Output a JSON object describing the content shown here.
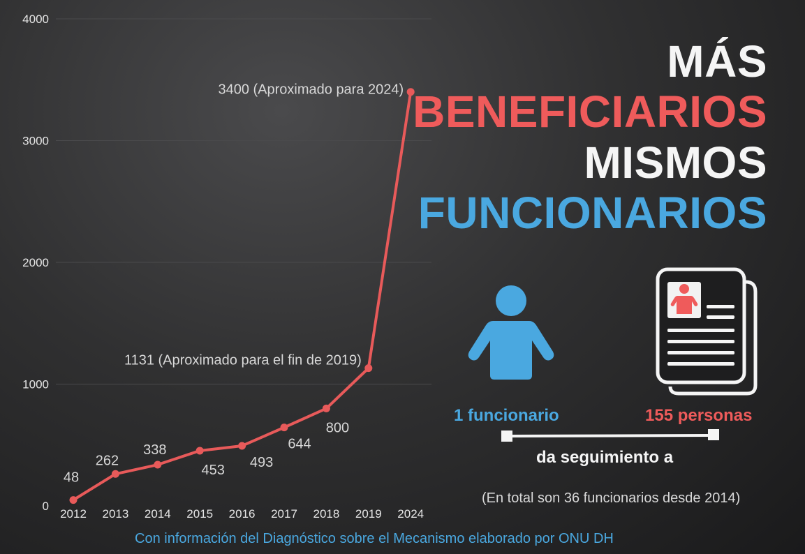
{
  "chart_data": {
    "type": "line",
    "categories": [
      "2012",
      "2013",
      "2014",
      "2015",
      "2016",
      "2017",
      "2018",
      "2019",
      "2024"
    ],
    "values": [
      48,
      262,
      338,
      453,
      493,
      644,
      800,
      1131,
      3400
    ],
    "data_labels": [
      "48",
      "262",
      "338",
      "453",
      "493",
      "644",
      "800",
      "1131 (Aproximado para el fin de 2019)",
      "3400 (Aproximado para 2024)"
    ],
    "yticks": [
      "0",
      "1000",
      "2000",
      "3000",
      "4000"
    ],
    "ylim": [
      0,
      4000
    ],
    "grid": true,
    "line_color": "#e85a5a"
  },
  "headline": {
    "line1": "MÁS",
    "line2": "BENEFICIARIOS",
    "line3": "MISMOS",
    "line4": "FUNCIONARIOS"
  },
  "infographic": {
    "left_caption": "1 funcionario",
    "right_caption": "155 personas",
    "connector_text": "da seguimiento a",
    "note": "(En total son 36 funcionarios desde 2014)",
    "icons": [
      "person-icon",
      "documents-icon"
    ],
    "colors": {
      "blue": "#4aa8e0",
      "red": "#ef5b5b",
      "white": "#f5f5f5"
    }
  },
  "source": "Con información del Diagnóstico sobre el Mecanismo elaborado por ONU DH"
}
